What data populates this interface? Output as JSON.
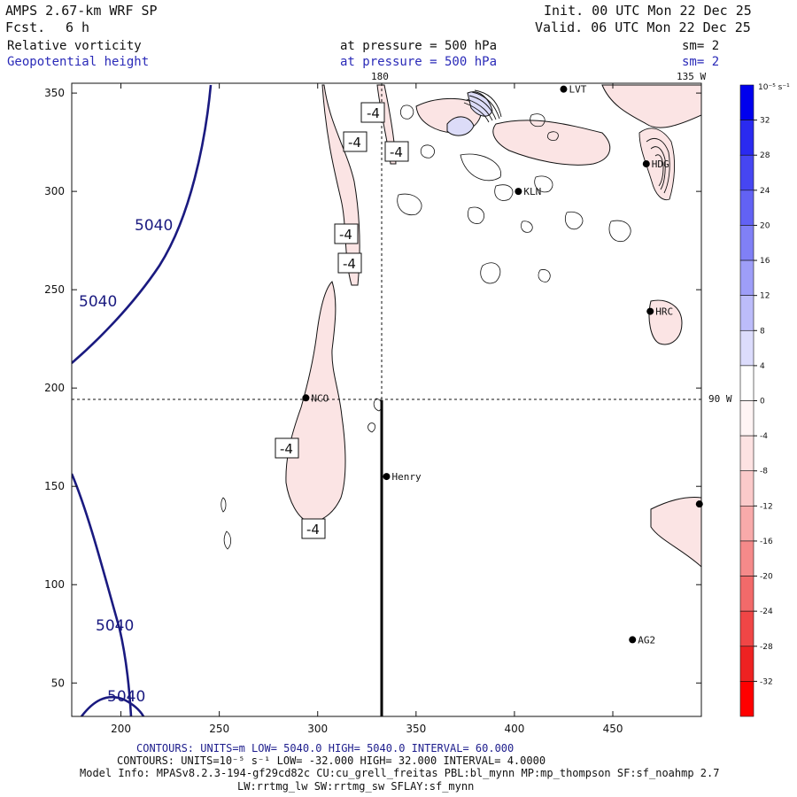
{
  "header": {
    "model": "AMPS 2.67-km WRF SP",
    "fcst_label": "Fcst.",
    "fcst_value": "6 h",
    "init": "Init. 00 UTC Mon 22 Dec 25",
    "valid": "Valid. 06 UTC Mon 22 Dec 25",
    "field1_name": "Relative vorticity",
    "field1_level": "at pressure =  500 hPa",
    "field1_sm": "sm= 2",
    "field2_name": "Geopotential height",
    "field2_level": "at pressure =  500 hPa",
    "field2_sm": "sm= 2"
  },
  "grid_labels": {
    "top_180": "180",
    "top_135w": "135 W",
    "right_90w": "90 W"
  },
  "axes": {
    "x_ticks": [
      200,
      250,
      300,
      350,
      400,
      450
    ],
    "y_ticks": [
      50,
      100,
      150,
      200,
      250,
      300,
      350
    ],
    "x_range": [
      175,
      495
    ],
    "y_range": [
      33,
      355
    ]
  },
  "colorbar": {
    "unit": "10⁻⁵ s⁻¹",
    "labels": [
      "32",
      "28",
      "24",
      "20",
      "16",
      "12",
      "8",
      "4",
      "0",
      "-4",
      "-8",
      "-12",
      "-16",
      "-20",
      "-24",
      "-28",
      "-32"
    ],
    "colors": [
      "#0000ee",
      "#2a2af0",
      "#4646f2",
      "#6262f4",
      "#8080f6",
      "#9e9ef8",
      "#bcbcfa",
      "#dcdcfc",
      "#ffffff",
      "#fff4f4",
      "#fde2e2",
      "#fbcaca",
      "#f8aaaa",
      "#f58a8a",
      "#f26a6a",
      "#f04646",
      "#ee2222",
      "#ff0000"
    ]
  },
  "stations": [
    {
      "name": "LVT",
      "x": 425,
      "y": 352
    },
    {
      "name": "HDG",
      "x": 467,
      "y": 314
    },
    {
      "name": "KLN",
      "x": 402,
      "y": 300
    },
    {
      "name": "HRC",
      "x": 469,
      "y": 239
    },
    {
      "name": "NCO",
      "x": 294,
      "y": 195
    },
    {
      "name": "Henry",
      "x": 335,
      "y": 155
    },
    {
      "name": "",
      "x": 494,
      "y": 141
    },
    {
      "name": "AG2",
      "x": 460,
      "y": 72
    }
  ],
  "contour_labels": {
    "height": [
      "5040",
      "5040",
      "5040",
      "5040"
    ],
    "vorticity": [
      "-4",
      "-4",
      "-4",
      "-4",
      "-4",
      "-4",
      "-4"
    ]
  },
  "footer": {
    "line1": "CONTOURS:  UNITS=m  LOW=  5040.0       HIGH=  5040.0      INTERVAL=   60.000",
    "line2": "CONTOURS:  UNITS=10⁻⁵ s⁻¹  LOW= -32.000       HIGH=  32.000      INTERVAL=   4.0000",
    "line3": "Model Info: MPASv8.2.3-194-gf29cd82c CU:cu_grell_freitas PBL:bl_mynn MP:mp_thompson SF:sf_noahmp 2.7",
    "line4": "LW:rrtmg_lw SW:rrtmg_sw SFLAY:sf_mynn"
  },
  "colors": {
    "height_contour": "#1a1a80",
    "vort_positive_fill": "#fbe4e4",
    "vort_negative_fill": "#dcdcf8",
    "vort_line": "#111111"
  }
}
